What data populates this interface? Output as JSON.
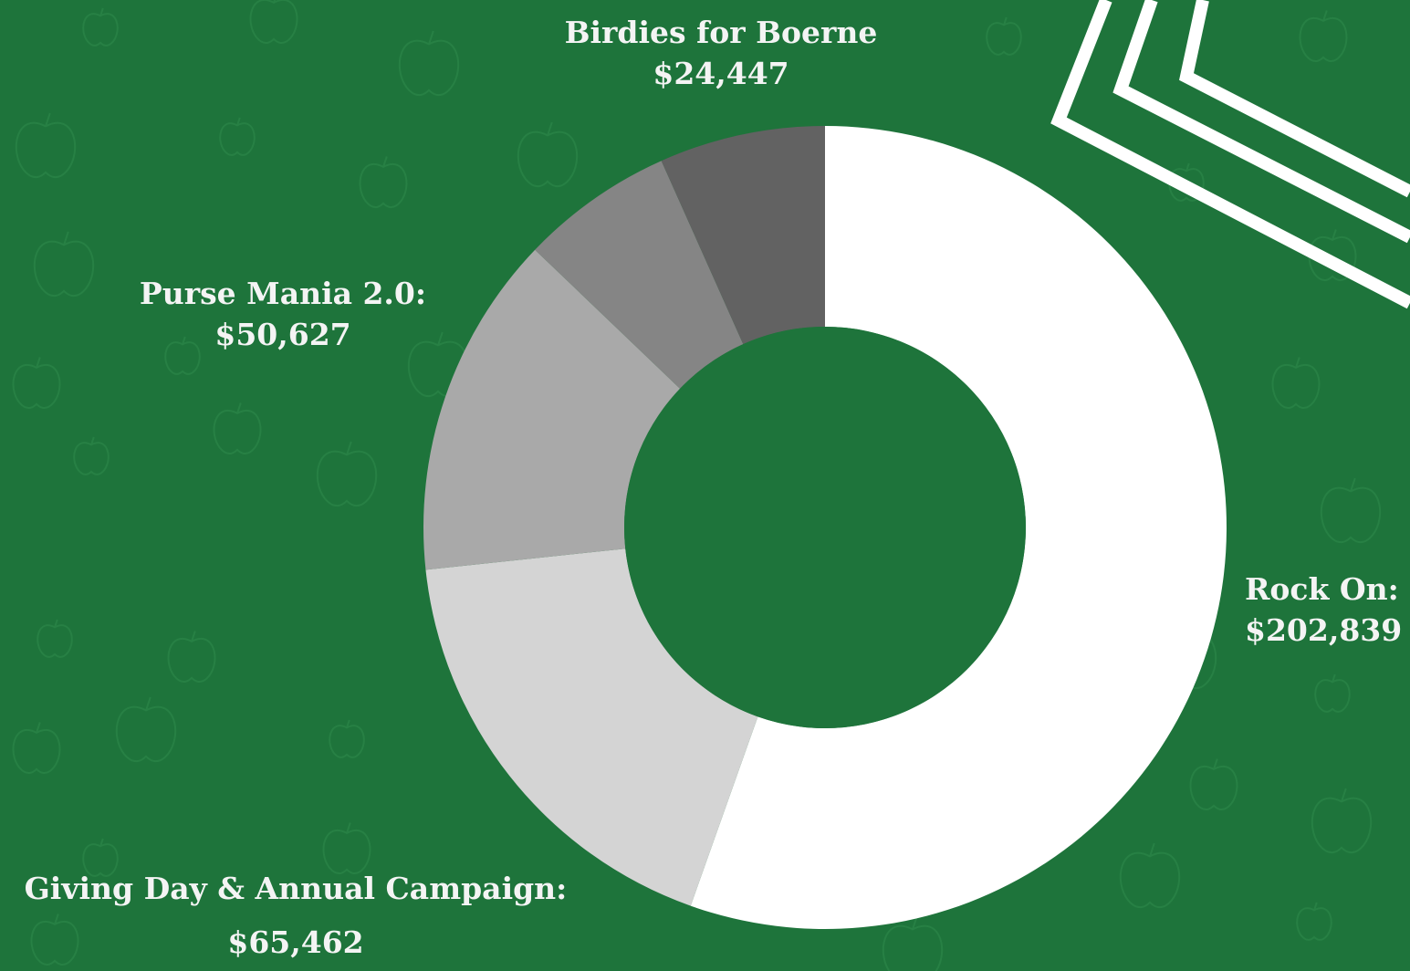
{
  "chart_data": {
    "type": "pie",
    "variant": "donut",
    "title": "",
    "slices": [
      {
        "label": "Rock On:",
        "value": 202839,
        "display": "$202,839",
        "color": "#ffffff"
      },
      {
        "label": "Giving Day & Annual Campaign:",
        "value": 65462,
        "display": "$65,462",
        "color": "#d4d4d4"
      },
      {
        "label": "Purse Mania 2.0:",
        "value": 50627,
        "display": "$50,627",
        "color": "#a9a9a9"
      },
      {
        "label": "",
        "value": 22560,
        "display": "",
        "color": "#858585"
      },
      {
        "label": "Birdies for Boerne",
        "value": 24447,
        "display": "$24,447",
        "color": "#626262"
      }
    ],
    "legend": "none",
    "background": "#1e743b"
  },
  "decor": {
    "pattern_icon": "apple-icon",
    "corner_graphic": "white-chevron-stripes"
  }
}
